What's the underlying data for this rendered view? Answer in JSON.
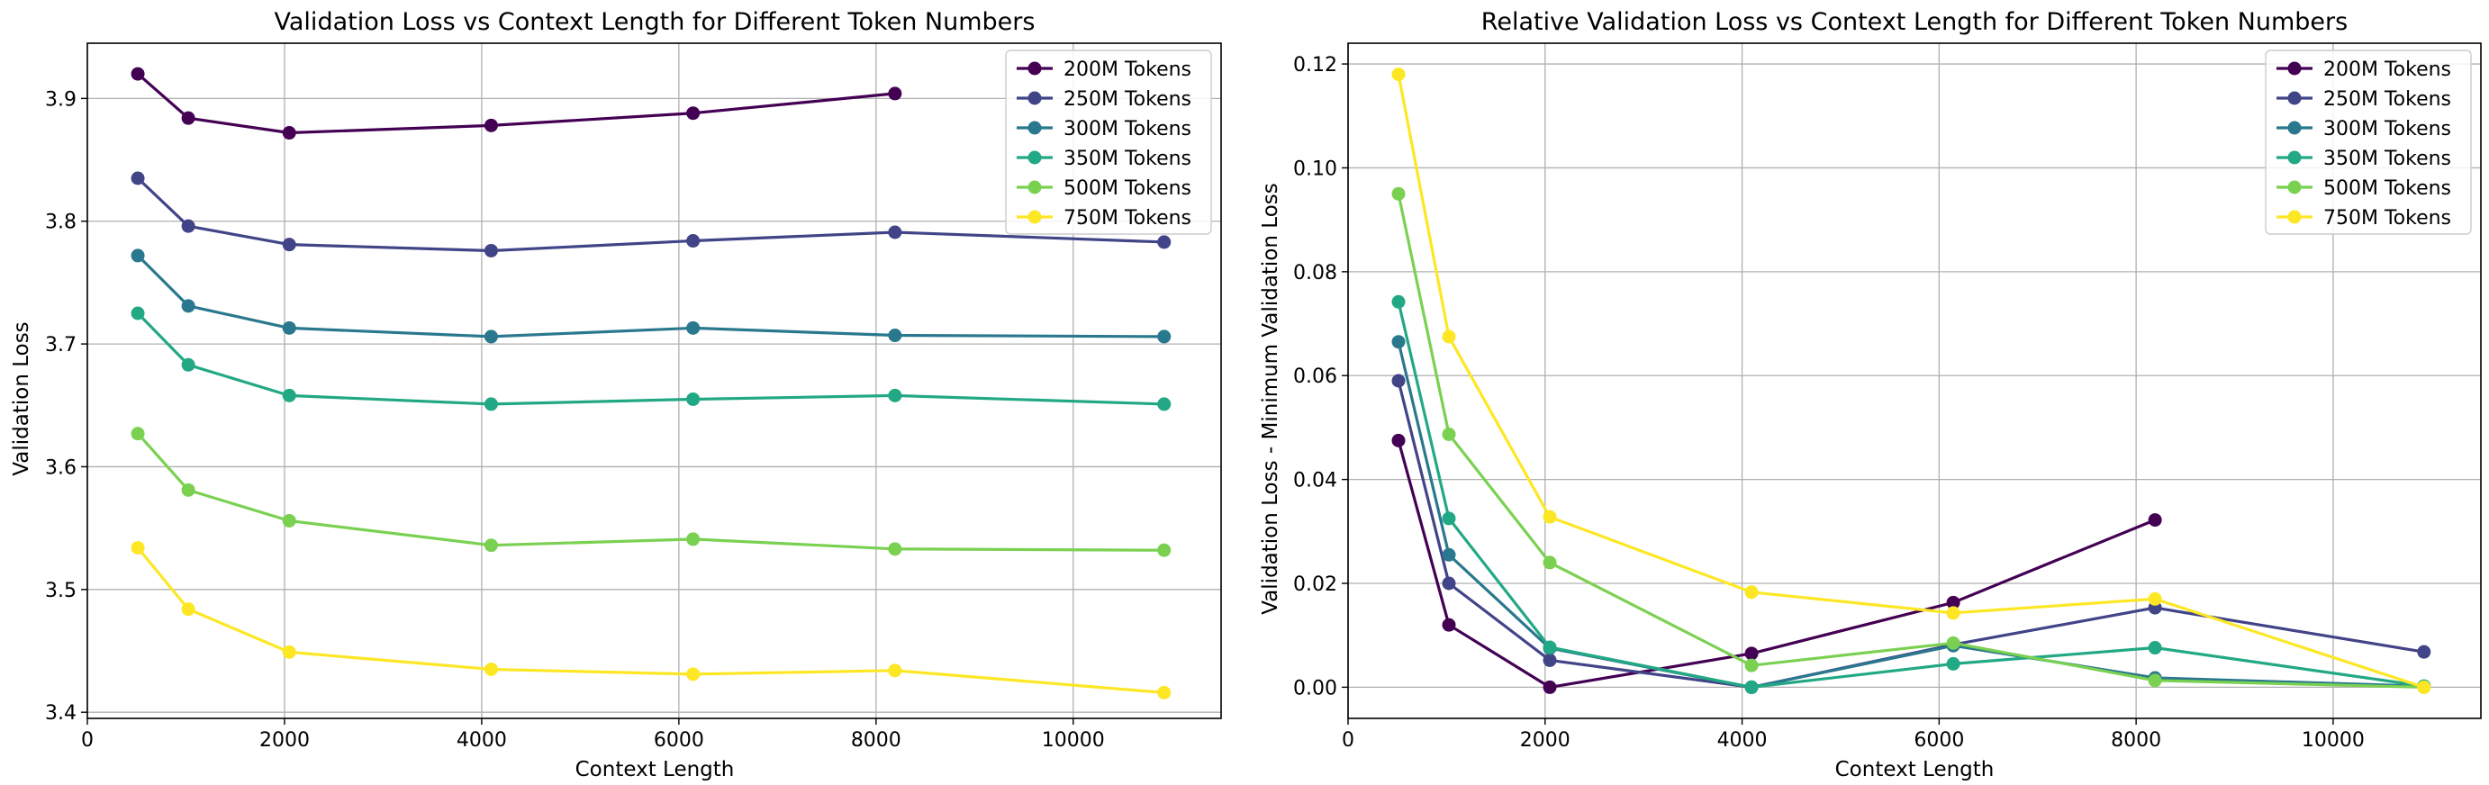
{
  "colors": {
    "200M Tokens": "#440154",
    "250M Tokens": "#414487",
    "300M Tokens": "#2a788e",
    "350M Tokens": "#22a884",
    "500M Tokens": "#7ad151",
    "750M Tokens": "#fde725"
  },
  "chart_data": [
    {
      "type": "line",
      "title": "Validation Loss vs Context Length for Different Token Numbers",
      "xlabel": "Context Length",
      "ylabel": "Validation Loss",
      "xlim": [
        0,
        11500
      ],
      "ylim": [
        3.395,
        3.945
      ],
      "xticks": [
        0,
        2000,
        4000,
        6000,
        8000,
        10000
      ],
      "yticks": [
        3.4,
        3.5,
        3.6,
        3.7,
        3.8,
        3.9
      ],
      "ytick_decimals": 1,
      "grid": true,
      "legend_position": "top-right",
      "series": [
        {
          "name": "200M Tokens",
          "x": [
            512,
            1024,
            2048,
            4096,
            6144,
            8192
          ],
          "y": [
            3.92,
            3.884,
            3.872,
            3.878,
            3.888,
            3.904
          ]
        },
        {
          "name": "250M Tokens",
          "x": [
            512,
            1024,
            2048,
            4096,
            6144,
            8192,
            10922
          ],
          "y": [
            3.835,
            3.796,
            3.781,
            3.776,
            3.784,
            3.791,
            3.783
          ]
        },
        {
          "name": "300M Tokens",
          "x": [
            512,
            1024,
            2048,
            4096,
            6144,
            8192,
            10922
          ],
          "y": [
            3.772,
            3.731,
            3.713,
            3.706,
            3.713,
            3.707,
            3.706
          ]
        },
        {
          "name": "350M Tokens",
          "x": [
            512,
            1024,
            2048,
            4096,
            6144,
            8192,
            10922
          ],
          "y": [
            3.725,
            3.683,
            3.658,
            3.651,
            3.655,
            3.658,
            3.651
          ]
        },
        {
          "name": "500M Tokens",
          "x": [
            512,
            1024,
            2048,
            4096,
            6144,
            8192,
            10922
          ],
          "y": [
            3.627,
            3.581,
            3.556,
            3.536,
            3.541,
            3.533,
            3.532
          ]
        },
        {
          "name": "750M Tokens",
          "x": [
            512,
            1024,
            2048,
            4096,
            6144,
            8192,
            10922
          ],
          "y": [
            3.534,
            3.484,
            3.449,
            3.435,
            3.431,
            3.434,
            3.416
          ]
        }
      ]
    },
    {
      "type": "line",
      "title": "Relative Validation Loss vs Context Length for Different Token Numbers",
      "xlabel": "Context Length",
      "ylabel": "Validation Loss - Minimum Validation Loss",
      "xlim": [
        0,
        11500
      ],
      "ylim": [
        -0.006,
        0.124
      ],
      "xticks": [
        0,
        2000,
        4000,
        6000,
        8000,
        10000
      ],
      "yticks": [
        0.0,
        0.02,
        0.04,
        0.06,
        0.08,
        0.1,
        0.12
      ],
      "ytick_decimals": 2,
      "grid": true,
      "legend_position": "top-right",
      "series": [
        {
          "name": "200M Tokens",
          "x": [
            512,
            1024,
            2048,
            4096,
            6144,
            8192
          ],
          "y": [
            0.0475,
            0.012,
            0.0,
            0.0065,
            0.0163,
            0.0322
          ]
        },
        {
          "name": "250M Tokens",
          "x": [
            512,
            1024,
            2048,
            4096,
            6144,
            8192,
            10922
          ],
          "y": [
            0.059,
            0.02,
            0.0052,
            0.0,
            0.0082,
            0.0153,
            0.0068
          ]
        },
        {
          "name": "300M Tokens",
          "x": [
            512,
            1024,
            2048,
            4096,
            6144,
            8192,
            10922
          ],
          "y": [
            0.0665,
            0.0255,
            0.0075,
            0.0,
            0.008,
            0.0018,
            0.0002
          ]
        },
        {
          "name": "350M Tokens",
          "x": [
            512,
            1024,
            2048,
            4096,
            6144,
            8192,
            10922
          ],
          "y": [
            0.0742,
            0.0325,
            0.0077,
            0.0,
            0.0045,
            0.0076,
            0.0002
          ]
        },
        {
          "name": "500M Tokens",
          "x": [
            512,
            1024,
            2048,
            4096,
            6144,
            8192,
            10922
          ],
          "y": [
            0.095,
            0.0487,
            0.024,
            0.0042,
            0.0085,
            0.0013,
            0.0
          ]
        },
        {
          "name": "750M Tokens",
          "x": [
            512,
            1024,
            2048,
            4096,
            6144,
            8192,
            10922
          ],
          "y": [
            0.118,
            0.0675,
            0.0328,
            0.0183,
            0.0143,
            0.017,
            0.0
          ]
        }
      ]
    }
  ]
}
